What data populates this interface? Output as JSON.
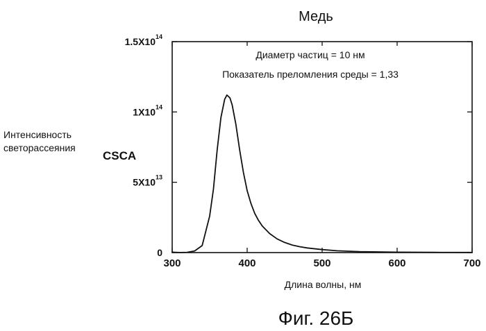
{
  "figure": {
    "caption": "Фиг. 26Б"
  },
  "chart_data": {
    "type": "line",
    "title": "Медь",
    "annotations": [
      "Диаметр частиц =  10 нм",
      "Показатель преломления среды = 1,33"
    ],
    "xlabel": "Длина волны, нм",
    "ylabel_lines": [
      "Интенсивность",
      "светорассеяния"
    ],
    "ylabel_symbol": "CSCA",
    "xlim": [
      300,
      700
    ],
    "ylim": [
      0,
      150000000000000.0
    ],
    "xticks": [
      {
        "value": 300,
        "label": "300"
      },
      {
        "value": 400,
        "label": "400"
      },
      {
        "value": 500,
        "label": "500"
      },
      {
        "value": 600,
        "label": "600"
      },
      {
        "value": 700,
        "label": "700"
      }
    ],
    "yticks": [
      {
        "value": 0,
        "mantissa": "0",
        "exp": ""
      },
      {
        "value": 50000000000000.0,
        "mantissa": "5X10",
        "exp": "13"
      },
      {
        "value": 100000000000000.0,
        "mantissa": "1X10",
        "exp": "14"
      },
      {
        "value": 150000000000000.0,
        "mantissa": "1.5X10",
        "exp": "14"
      }
    ],
    "grid": false,
    "series": [
      {
        "x": [
          300,
          310,
          320,
          330,
          340,
          350,
          355,
          360,
          365,
          370,
          373,
          375,
          377,
          380,
          385,
          390,
          395,
          400,
          405,
          410,
          415,
          420,
          430,
          440,
          450,
          460,
          470,
          480,
          500,
          520,
          550,
          600,
          650,
          700
        ],
        "y": [
          300000000000.0,
          50000000000.0,
          200000000000.0,
          1200000000000.0,
          5000000000000.0,
          26000000000000.0,
          45000000000000.0,
          73000000000000.0,
          96000000000000.0,
          109000000000000.0,
          112000000000000.0,
          111000000000000.0,
          110000000000000.0,
          105000000000000.0,
          91000000000000.0,
          73000000000000.0,
          57000000000000.0,
          44000000000000.0,
          35000000000000.0,
          28000000000000.0,
          23000000000000.0,
          19000000000000.0,
          13500000000000.0,
          9700000000000.0,
          7200000000000.0,
          5400000000000.0,
          4200000000000.0,
          3300000000000.0,
          2100000000000.0,
          1300000000000.0,
          700000000000.0,
          300000000000.0,
          150000000000.0,
          100000000000.0
        ]
      }
    ]
  }
}
